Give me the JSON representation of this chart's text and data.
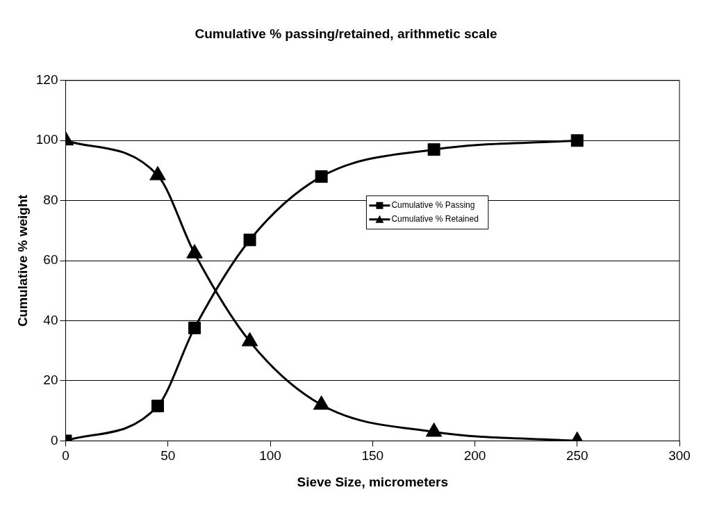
{
  "chart_data": {
    "type": "line",
    "title": "Cumulative % passing/retained, arithmetic scale",
    "xlabel": "Sieve Size, micrometers",
    "ylabel": "Cumulative % weight",
    "x": [
      0,
      45,
      63,
      90,
      125,
      180,
      250
    ],
    "series": [
      {
        "name": "Cumulative % Passing",
        "color": "#000000",
        "marker": "square",
        "values": [
          0,
          11.6,
          37.6,
          66.9,
          88,
          97,
          100
        ]
      },
      {
        "name": "Cumulative % Retained",
        "color": "#000000",
        "marker": "triangle",
        "values": [
          100,
          88.4,
          62.4,
          33.1,
          12,
          3,
          0
        ]
      }
    ],
    "xlim": [
      0,
      300
    ],
    "xticks": [
      0,
      50,
      100,
      150,
      200,
      250,
      300
    ],
    "ylim": [
      0,
      120
    ],
    "yticks": [
      0,
      20,
      40,
      60,
      80,
      100,
      120
    ],
    "grid": "y",
    "legend": "right",
    "line_style": "solid"
  }
}
